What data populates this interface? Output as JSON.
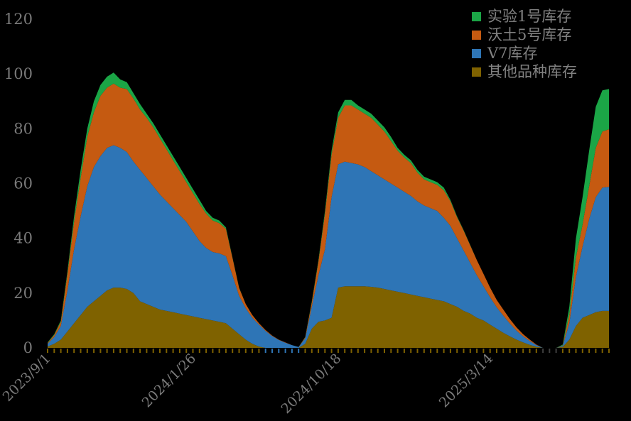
{
  "window": {
    "background_color": "#000000"
  },
  "chart_data": {
    "type": "area",
    "stacked": true,
    "title": "",
    "background_color": "#000000",
    "axis_text_color": "#7a7a7a",
    "gap_tick_color": "#3f3f3f",
    "grid": false,
    "legend_position": "top-right",
    "y_axis": {
      "min": 0,
      "max": 120,
      "ticks": [
        "0",
        "20",
        "40",
        "60",
        "80",
        "100",
        "120"
      ],
      "tick_values": [
        0,
        20,
        40,
        60,
        80,
        100,
        120
      ]
    },
    "x_axis": {
      "type": "category-dates",
      "tick_count": 86,
      "label_rotation_deg": -45,
      "labels": [
        "2023/9/1",
        "2024/1/26",
        "2024/10/18",
        "2025/3/14"
      ],
      "label_indices": [
        0,
        22,
        44,
        67
      ]
    },
    "series": [
      {
        "name": "其他品种库存",
        "color": "#7F6200",
        "values": [
          0.5,
          1.5,
          3,
          6,
          9,
          12,
          15,
          17,
          19,
          21,
          22,
          22,
          21.5,
          20,
          17,
          16,
          15,
          14,
          13.5,
          13,
          12.5,
          12,
          11.5,
          11,
          10.5,
          10,
          9.5,
          9,
          7,
          5,
          3,
          1.5,
          0.5,
          0,
          0,
          0,
          0,
          0,
          0,
          1.5,
          7,
          9.5,
          10,
          11,
          22,
          22.5,
          22.5,
          22.5,
          22.5,
          22.3,
          22,
          21.5,
          21,
          20.5,
          20,
          19.5,
          19,
          18.5,
          18,
          17.5,
          17,
          16,
          15,
          13.5,
          12.5,
          11,
          10,
          8.5,
          7,
          5.5,
          4.2,
          3,
          2,
          1.1,
          0.4,
          0,
          0,
          0,
          0.3,
          3,
          8,
          11,
          12,
          13,
          13.5,
          13.5
        ]
      },
      {
        "name": "V7库存",
        "color": "#2E75B6",
        "values": [
          1,
          2.5,
          5,
          15,
          27,
          36,
          44,
          49,
          51,
          52,
          52,
          51,
          50,
          48,
          48,
          46,
          44,
          42,
          40,
          38,
          36,
          34,
          31,
          28,
          26,
          25,
          25,
          24.5,
          19.5,
          14,
          11.5,
          9.5,
          8,
          6.2,
          4.3,
          2.9,
          1.9,
          1,
          0.3,
          2,
          8,
          17,
          26,
          44,
          45,
          45.5,
          45,
          44.5,
          43.5,
          42.2,
          41,
          40,
          39,
          38,
          37,
          36,
          34.5,
          33.5,
          33,
          32.5,
          30.5,
          28.5,
          25,
          22,
          18.5,
          15.5,
          12.5,
          10,
          7.8,
          6.3,
          4.7,
          3.3,
          2.2,
          1.4,
          0.6,
          0,
          0,
          0,
          0.4,
          6,
          18,
          26,
          35,
          42,
          45,
          45.3
        ]
      },
      {
        "name": "沃土5号库存",
        "color": "#C55A11",
        "values": [
          0.3,
          0.7,
          1.5,
          6,
          10,
          14,
          18,
          20,
          22,
          22,
          22.5,
          22,
          23,
          23,
          22,
          22,
          21.5,
          20.5,
          19,
          17.5,
          16,
          14.5,
          14,
          13.5,
          12.5,
          11.5,
          11,
          10,
          6.3,
          2.9,
          1.5,
          1,
          0.5,
          0.3,
          0.2,
          0.1,
          0.1,
          0,
          0,
          0.4,
          1.7,
          5,
          13,
          15.5,
          17,
          20.5,
          21,
          20,
          19.5,
          19.5,
          18.5,
          17.5,
          15.5,
          13.5,
          12.5,
          12,
          10.5,
          9.5,
          9.5,
          9.5,
          10,
          9,
          7.7,
          7.3,
          6.4,
          5.5,
          4.5,
          3.5,
          2.7,
          2.2,
          1.6,
          1.2,
          0.8,
          0.5,
          0.2,
          0,
          0,
          0,
          0.2,
          3,
          7,
          8,
          12,
          18,
          20.5,
          21
        ]
      },
      {
        "name": "实验1号库存",
        "color": "#1BA546",
        "values": [
          0.2,
          0.3,
          0.5,
          1,
          2,
          3,
          3,
          4,
          4,
          4,
          4,
          3,
          2.5,
          2,
          2,
          1.5,
          1.5,
          1.5,
          1.5,
          1.5,
          1.5,
          1.5,
          1.5,
          1.5,
          1,
          1,
          1,
          0.5,
          0.2,
          0.1,
          0,
          0,
          0,
          0,
          0,
          0,
          0,
          0,
          0,
          0.1,
          0.3,
          0.5,
          1,
          1.5,
          2,
          2,
          2,
          1.5,
          1.5,
          1.5,
          1.5,
          1.5,
          1.5,
          1,
          1,
          1,
          1,
          1,
          1,
          1,
          1,
          0.5,
          0.3,
          0.2,
          0.1,
          0,
          0,
          0,
          0,
          0,
          0,
          0,
          0,
          0,
          0,
          0,
          0,
          0,
          0.3,
          3,
          7,
          10,
          13,
          15,
          15,
          14.7
        ]
      }
    ],
    "legend_order_top_to_bottom": [
      "实验1号库存",
      "沃土5号库存",
      "V7库存",
      "其他品种库存"
    ]
  }
}
